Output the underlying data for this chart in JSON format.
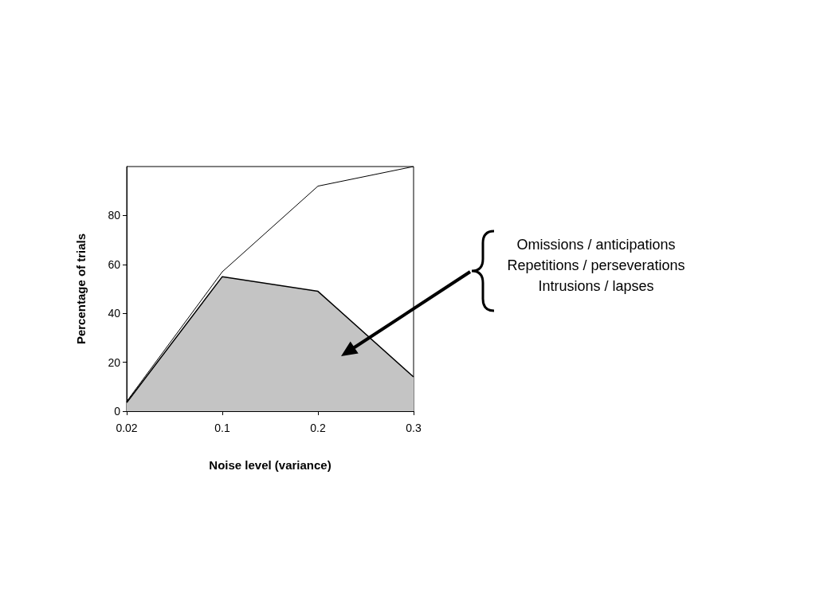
{
  "chart_data": {
    "type": "line",
    "xlabel": "Noise level (variance)",
    "ylabel": "Percentage of trials",
    "categories": [
      "0.02",
      "0.1",
      "0.2",
      "0.3"
    ],
    "series": [
      {
        "type": "line",
        "color": "#000000",
        "values": [
          4,
          57,
          92,
          100
        ]
      },
      {
        "type": "area",
        "color": "#000000",
        "values": [
          3.5,
          55,
          49,
          14
        ]
      }
    ],
    "ylim": [
      0,
      100
    ],
    "yticks": [
      0,
      20,
      40,
      60,
      80
    ],
    "grid": false,
    "marker": "none",
    "line_style": "solid",
    "annotations": [
      "Omissions / anticipations",
      "Repetitions / perseverations",
      "Intrusions / lapses"
    ]
  }
}
